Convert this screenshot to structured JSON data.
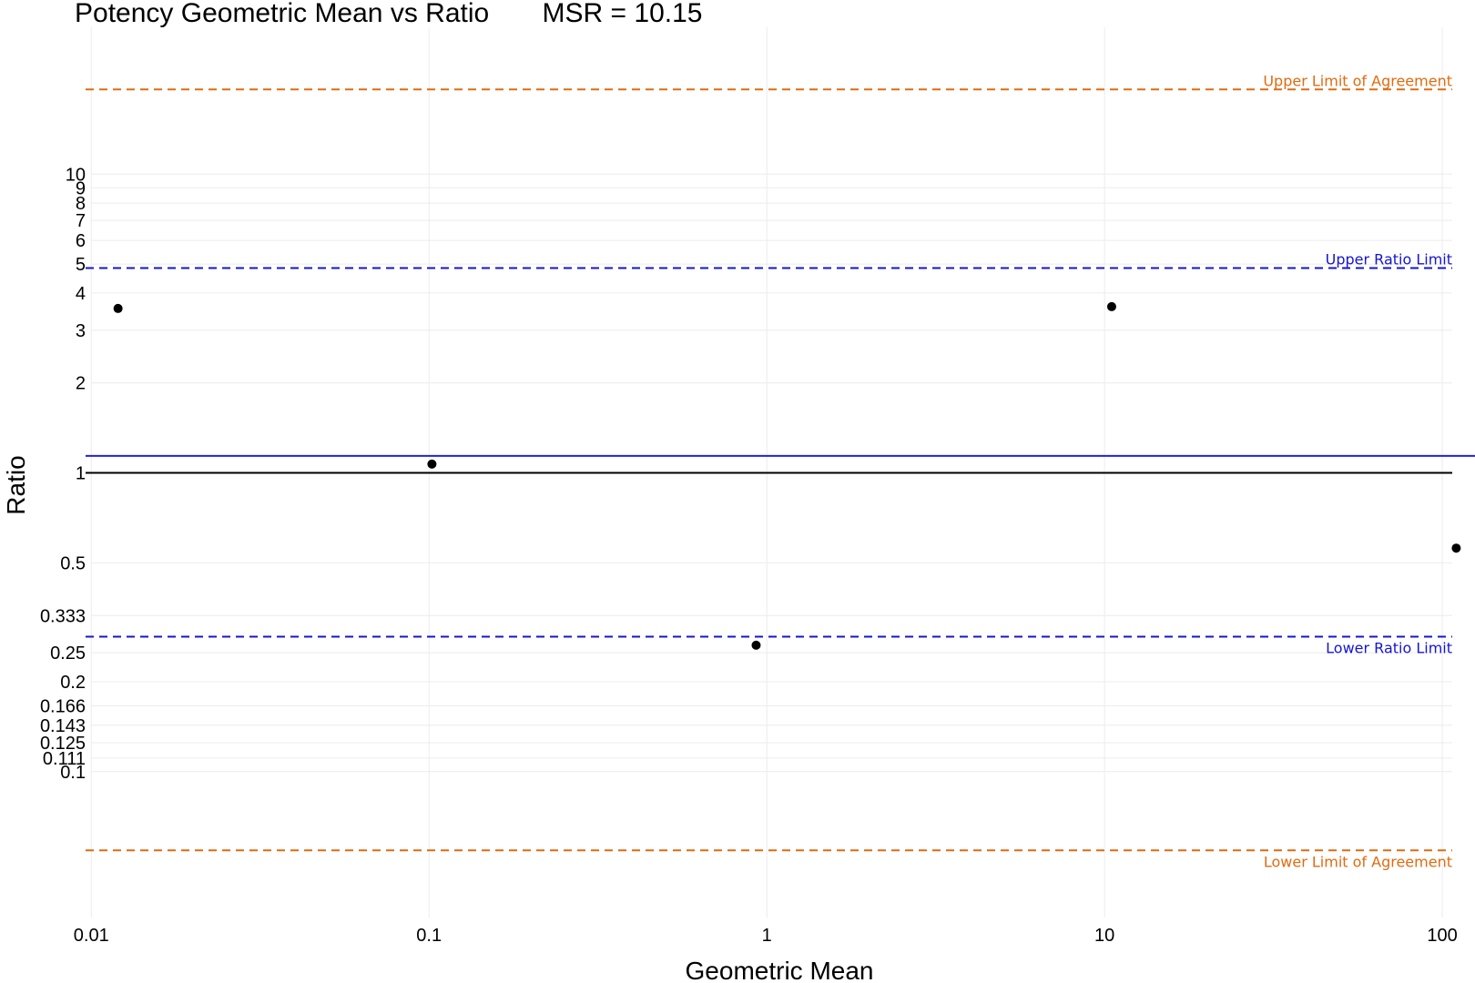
{
  "chart_data": {
    "type": "scatter",
    "title": "Potency Geometric Mean vs Ratio",
    "subtitle": "MSR = 10.15",
    "xlabel": "Geometric Mean",
    "ylabel": "Ratio",
    "x_scale": "log",
    "y_scale": "log",
    "xlim": [
      0.0095,
      125
    ],
    "ylim": [
      0.0325,
      31
    ],
    "x_ticks": [
      0.01,
      0.1,
      1,
      10,
      100
    ],
    "x_tick_labels": [
      "0.01",
      "0.1",
      "1",
      "10",
      "100"
    ],
    "y_ticks": [
      0.1,
      0.111,
      0.125,
      0.143,
      0.166,
      0.2,
      0.25,
      0.333,
      0.5,
      1,
      2,
      3,
      4,
      5,
      6,
      7,
      8,
      9,
      10
    ],
    "y_tick_labels": [
      "0.1",
      "0.111",
      "0.125",
      "0.143",
      "0.166",
      "0.2",
      "0.25",
      "0.333",
      "0.5",
      "1",
      "2",
      "3",
      "4",
      "5",
      "6",
      "7",
      "8",
      "9",
      "10"
    ],
    "grid": true,
    "points": [
      {
        "x": 0.012,
        "y": 3.55
      },
      {
        "x": 0.102,
        "y": 1.07
      },
      {
        "x": 0.93,
        "y": 0.265
      },
      {
        "x": 10.5,
        "y": 3.6
      },
      {
        "x": 110,
        "y": 0.56
      }
    ],
    "reference_lines": [
      {
        "label": "Upper Limit of Agreement",
        "y": 19.2,
        "style": "dashed",
        "color": "#E06B10"
      },
      {
        "label": "Upper Ratio Limit",
        "y": 4.85,
        "style": "dashed",
        "color": "#1515D0"
      },
      {
        "label": "",
        "y": 1.14,
        "style": "solid",
        "color": "#2222D8"
      },
      {
        "label": "",
        "y": 1,
        "style": "solid",
        "color": "#000000"
      },
      {
        "label": "Lower Ratio Limit",
        "y": 0.283,
        "style": "dashed",
        "color": "#1515D0"
      },
      {
        "label": "Lower Limit of Agreement",
        "y": 0.0545,
        "style": "dashed",
        "color": "#E06B10"
      }
    ]
  }
}
